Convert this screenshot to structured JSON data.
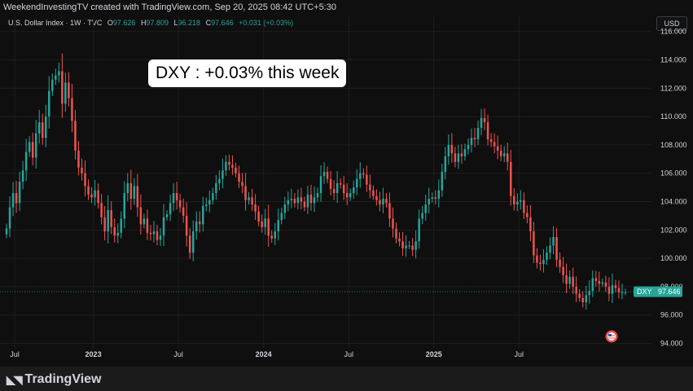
{
  "header": {
    "attribution": "WeekendInvestingTV created with TradingView.com, Sep 20, 2025 08:42 UTC+5:30"
  },
  "legend": {
    "symbol": "U.S. Dollar Index · 1W · TVC",
    "o_key": "O",
    "o_val": "97.626",
    "h_key": "H",
    "h_val": "97.809",
    "l_key": "L",
    "l_val": "96.218",
    "c_key": "C",
    "c_val": "97.646",
    "change": "+0.031 (+0.03%)"
  },
  "currency_button": "USD",
  "callout": "DXY : +0.03% this week",
  "price_tag": {
    "symbol": "DXY",
    "value": "97.646",
    "color": "#26a69a"
  },
  "brand": "TradingView",
  "colors": {
    "up": "#26a69a",
    "down": "#ef5350",
    "background": "#0f0f0f",
    "grid": "#1e1e1e"
  },
  "chart_data": {
    "type": "candlestick",
    "interval": "1W",
    "x_ticks": [
      "Jul",
      "2023",
      "Jul",
      "2024",
      "Jul",
      "2025",
      "Jul"
    ],
    "y_ticks": [
      "94.000",
      "96.000",
      "98.000",
      "100.000",
      "102.000",
      "104.000",
      "106.000",
      "108.000",
      "110.000",
      "112.000",
      "114.000",
      "116.000"
    ],
    "ylim": [
      93.8,
      116.5
    ],
    "last_close": 97.646,
    "closes": [
      102.1,
      103.6,
      104.6,
      103.9,
      105.4,
      106.2,
      107.5,
      108.2,
      107.1,
      108.8,
      109.6,
      108.5,
      110.0,
      111.8,
      112.6,
      112.9,
      113.2,
      110.9,
      112.4,
      111.3,
      109.7,
      107.6,
      106.4,
      106.0,
      105.1,
      104.5,
      104.3,
      104.8,
      103.9,
      102.9,
      101.9,
      103.4,
      102.2,
      101.6,
      101.8,
      102.8,
      104.6,
      105.3,
      104.2,
      105.1,
      103.6,
      102.4,
      102.8,
      101.8,
      101.7,
      101.9,
      101.3,
      101.6,
      102.9,
      103.1,
      103.9,
      104.6,
      104.1,
      103.6,
      103.0,
      101.6,
      100.4,
      101.9,
      102.6,
      102.4,
      103.7,
      103.8,
      104.1,
      104.6,
      105.3,
      105.6,
      106.2,
      106.8,
      106.6,
      106.4,
      106.0,
      105.4,
      105.1,
      104.1,
      104.3,
      103.8,
      103.3,
      102.6,
      102.2,
      102.8,
      101.6,
      101.4,
      101.9,
      102.7,
      103.2,
      103.8,
      104.1,
      104.2,
      103.9,
      104.3,
      104.0,
      103.6,
      104.5,
      103.9,
      104.3,
      104.6,
      105.8,
      106.1,
      105.6,
      104.9,
      104.6,
      105.3,
      105.2,
      104.6,
      104.3,
      104.6,
      105.0,
      105.6,
      106.0,
      105.9,
      105.2,
      104.8,
      104.4,
      104.1,
      103.8,
      104.2,
      103.9,
      102.8,
      102.1,
      101.4,
      101.2,
      100.7,
      100.9,
      100.9,
      100.6,
      101.2,
      102.8,
      103.2,
      103.8,
      104.2,
      104.3,
      104.2,
      104.8,
      106.1,
      107.2,
      108.0,
      107.4,
      106.8,
      107.4,
      107.2,
      107.7,
      108.0,
      108.5,
      108.4,
      109.2,
      109.9,
      109.6,
      108.4,
      108.2,
      107.9,
      107.6,
      107.2,
      107.4,
      106.8,
      104.4,
      103.8,
      104.0,
      104.1,
      103.2,
      102.9,
      101.9,
      100.2,
      99.7,
      99.6,
      99.9,
      100.4,
      100.9,
      101.5,
      99.9,
      99.4,
      98.8,
      98.2,
      98.7,
      98.0,
      97.5,
      97.2,
      96.9,
      97.4,
      97.7,
      98.6,
      98.4,
      98.2,
      98.3,
      98.0,
      97.5,
      98.1,
      97.9,
      97.6,
      97.6,
      97.6
    ]
  }
}
